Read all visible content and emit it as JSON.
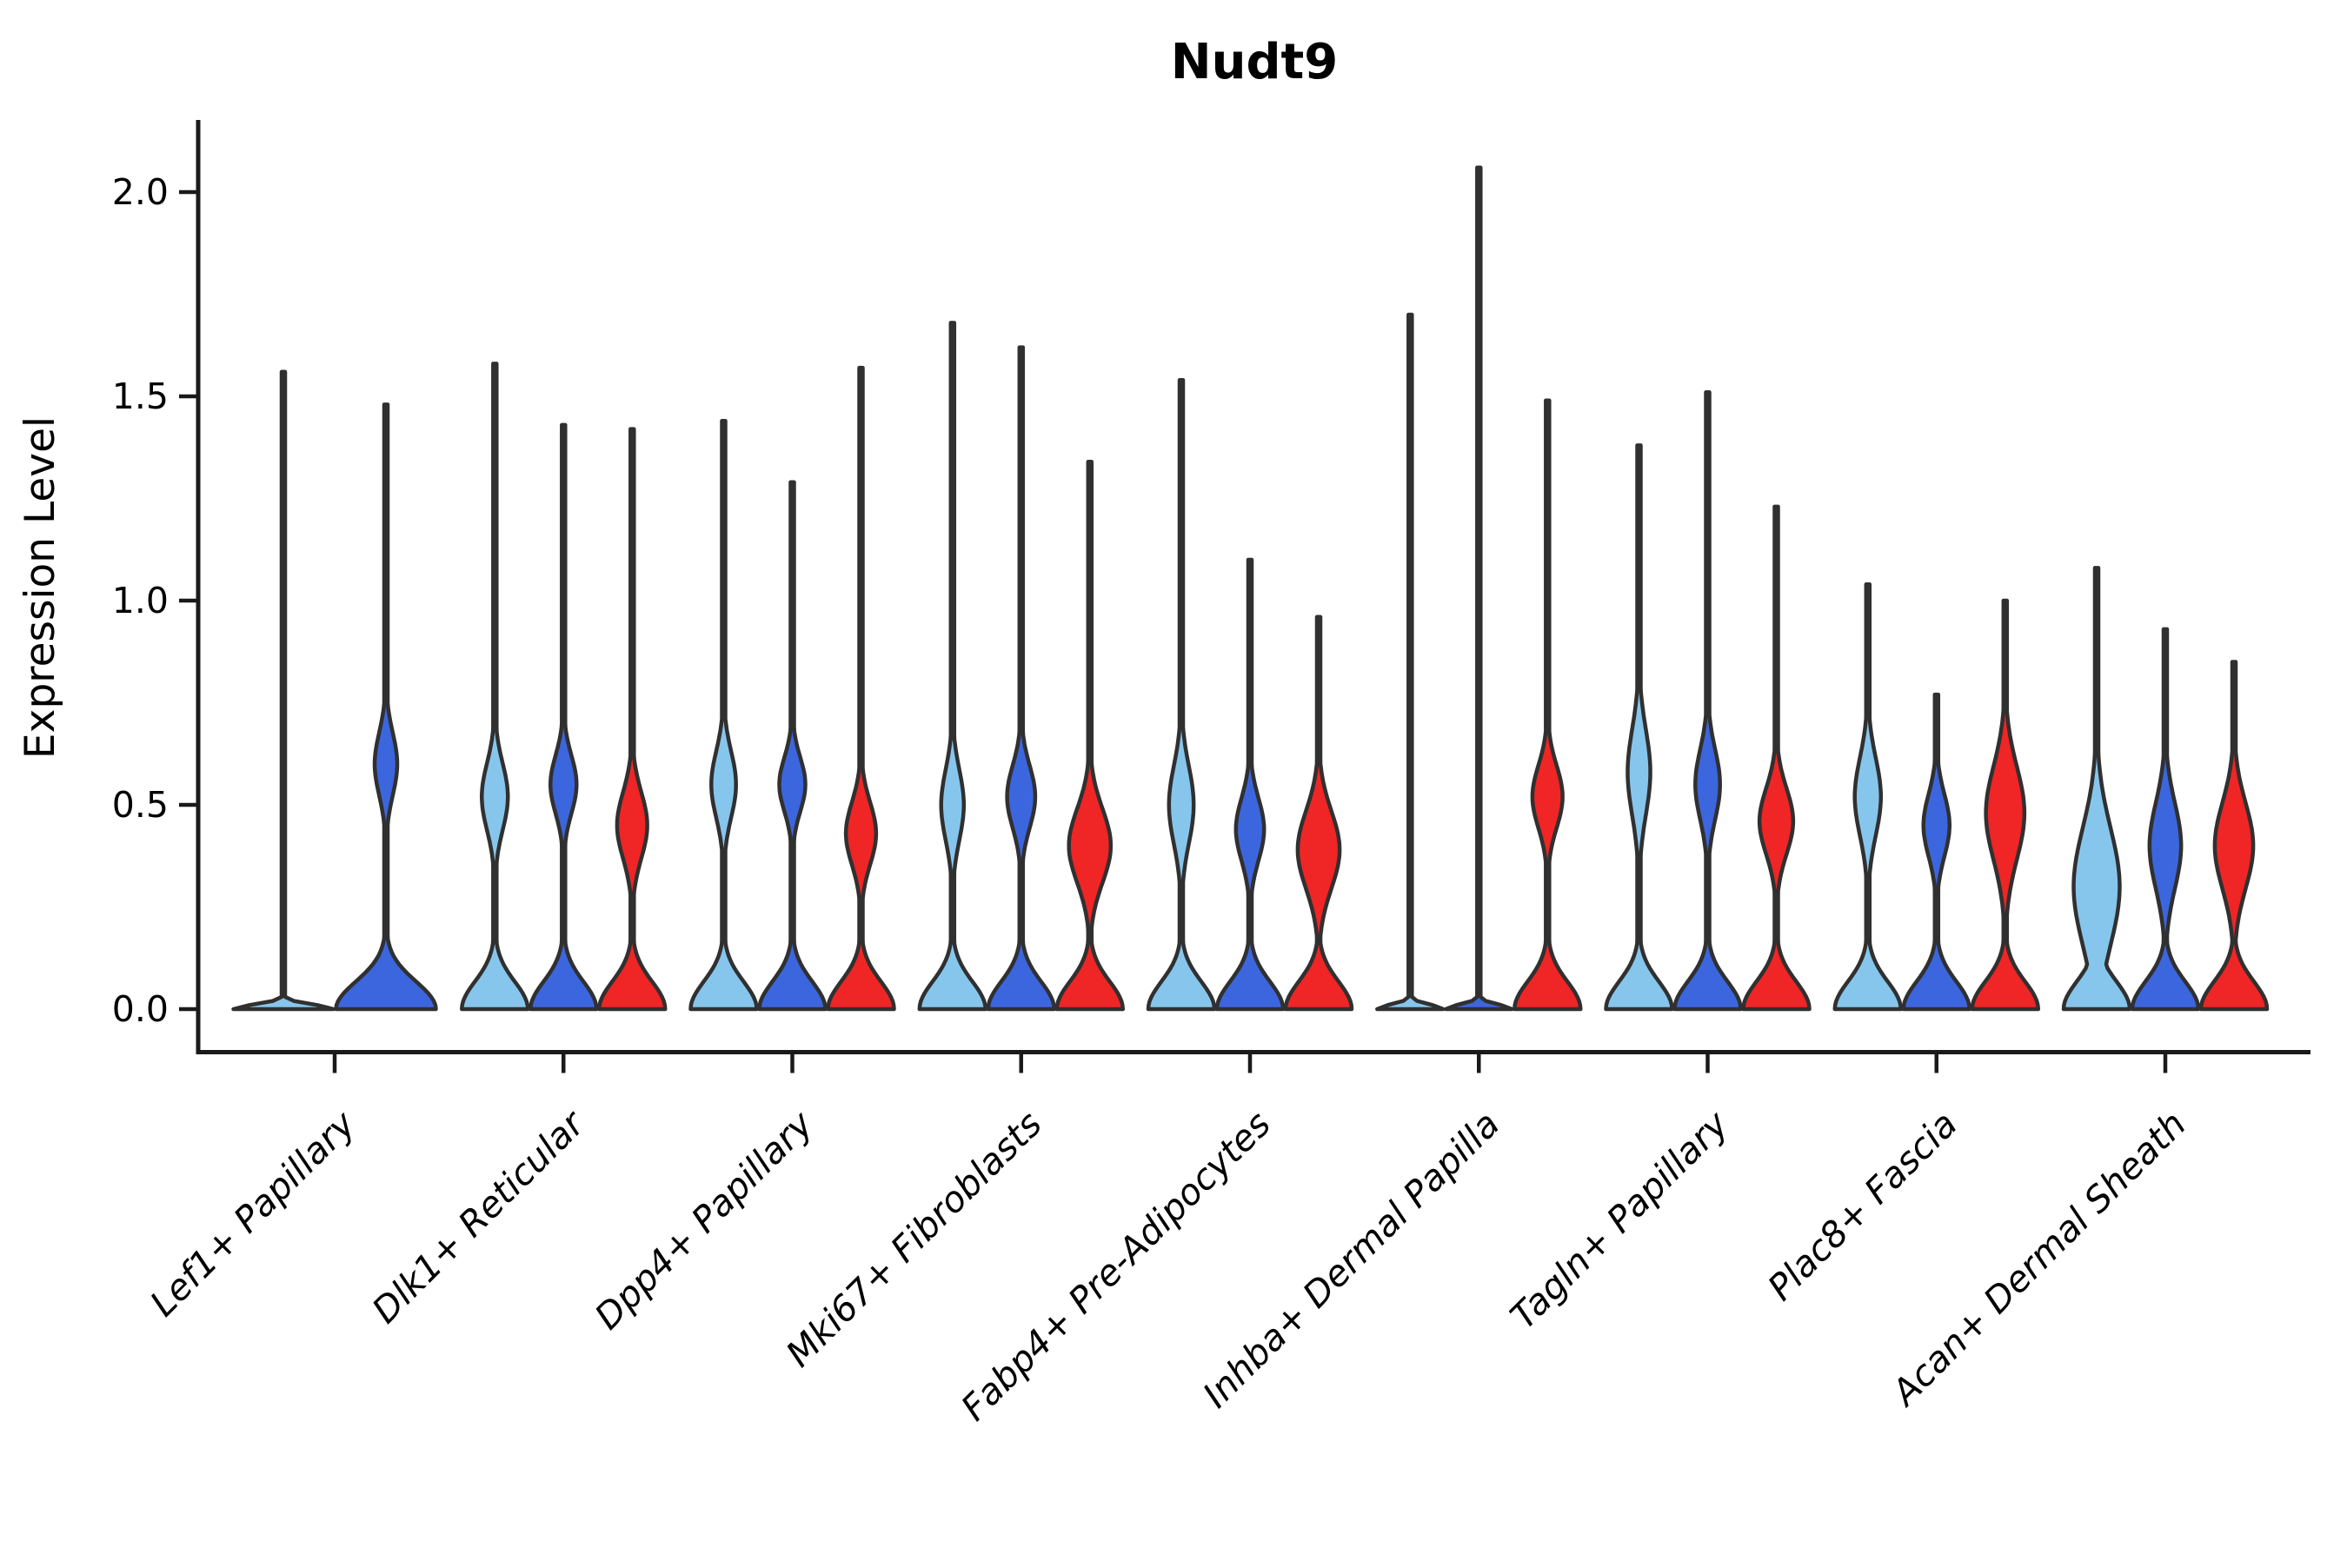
{
  "chart_data": {
    "type": "violin",
    "title": "Nudt9",
    "ylabel": "Expression Level",
    "xlabel": "",
    "grid": false,
    "legend_position": "none",
    "ylim": [
      0,
      2.1
    ],
    "ytick_labels": [
      "0.0",
      "0.5",
      "1.0",
      "1.5",
      "2.0"
    ],
    "ytick_values": [
      0.0,
      0.5,
      1.0,
      1.5,
      2.0
    ],
    "split_levels": [
      "light_blue",
      "blue",
      "red"
    ],
    "colors": {
      "light_blue": "#87C6EC",
      "blue": "#3C66DD",
      "red": "#F02525",
      "outline": "#303030",
      "axis": "#1A1A1A",
      "text": "#000000"
    },
    "categories": [
      "Lef1+ Papillary",
      "Dlk1+ Reticular",
      "Dpp4+ Papillary",
      "Mki67+ Fibroblasts",
      "Fabp4+ Pre-Adipocytes",
      "Inhba+ Dermal Papilla",
      "Tagln+ Papillary",
      "Plac8+ Fascia",
      "Acan+ Dermal Sheath"
    ],
    "groups": [
      {
        "category": "Lef1+ Papillary",
        "violins": [
          {
            "split": "light_blue",
            "max_expression": 1.56,
            "profile": "spike"
          },
          {
            "split": "blue",
            "max_expression": 1.48,
            "profile": "violin",
            "bulge_center": 0.6,
            "bulge_spread": 0.16,
            "bulge_width": 0.22
          }
        ]
      },
      {
        "category": "Dlk1+ Reticular",
        "violins": [
          {
            "split": "light_blue",
            "max_expression": 1.58,
            "profile": "violin",
            "bulge_center": 0.52,
            "bulge_spread": 0.17,
            "bulge_width": 0.38
          },
          {
            "split": "blue",
            "max_expression": 1.43,
            "profile": "violin",
            "bulge_center": 0.55,
            "bulge_spread": 0.15,
            "bulge_width": 0.38
          },
          {
            "split": "red",
            "max_expression": 1.42,
            "profile": "violin",
            "bulge_center": 0.45,
            "bulge_spread": 0.17,
            "bulge_width": 0.44
          }
        ]
      },
      {
        "category": "Dpp4+ Papillary",
        "violins": [
          {
            "split": "light_blue",
            "max_expression": 1.44,
            "profile": "violin",
            "bulge_center": 0.55,
            "bulge_spread": 0.17,
            "bulge_width": 0.36
          },
          {
            "split": "blue",
            "max_expression": 1.29,
            "profile": "violin",
            "bulge_center": 0.55,
            "bulge_spread": 0.14,
            "bulge_width": 0.38
          },
          {
            "split": "red",
            "max_expression": 1.57,
            "profile": "violin",
            "bulge_center": 0.43,
            "bulge_spread": 0.16,
            "bulge_width": 0.44
          }
        ]
      },
      {
        "category": "Mki67+ Fibroblasts",
        "violins": [
          {
            "split": "light_blue",
            "max_expression": 1.68,
            "profile": "violin",
            "bulge_center": 0.5,
            "bulge_spread": 0.18,
            "bulge_width": 0.33
          },
          {
            "split": "blue",
            "max_expression": 1.62,
            "profile": "violin",
            "bulge_center": 0.52,
            "bulge_spread": 0.16,
            "bulge_width": 0.41
          },
          {
            "split": "red",
            "max_expression": 1.34,
            "profile": "violin",
            "bulge_center": 0.4,
            "bulge_spread": 0.19,
            "bulge_width": 0.61
          }
        ]
      },
      {
        "category": "Fabp4+ Pre-Adipocytes",
        "violins": [
          {
            "split": "light_blue",
            "max_expression": 1.54,
            "profile": "violin",
            "bulge_center": 0.5,
            "bulge_spread": 0.2,
            "bulge_width": 0.36
          },
          {
            "split": "blue",
            "max_expression": 1.1,
            "profile": "violin",
            "bulge_center": 0.44,
            "bulge_spread": 0.16,
            "bulge_width": 0.41
          },
          {
            "split": "red",
            "max_expression": 0.96,
            "profile": "violin",
            "bulge_center": 0.39,
            "bulge_spread": 0.2,
            "bulge_width": 0.61
          }
        ]
      },
      {
        "category": "Inhba+ Dermal Papilla",
        "violins": [
          {
            "split": "light_blue",
            "max_expression": 1.7,
            "profile": "spike"
          },
          {
            "split": "blue",
            "max_expression": 2.06,
            "profile": "spike"
          },
          {
            "split": "red",
            "max_expression": 1.49,
            "profile": "violin",
            "bulge_center": 0.52,
            "bulge_spread": 0.16,
            "bulge_width": 0.44
          }
        ]
      },
      {
        "category": "Tagln+ Papillary",
        "violins": [
          {
            "split": "light_blue",
            "max_expression": 1.38,
            "profile": "violin",
            "bulge_center": 0.58,
            "bulge_spread": 0.22,
            "bulge_width": 0.33
          },
          {
            "split": "blue",
            "max_expression": 1.51,
            "profile": "violin",
            "bulge_center": 0.55,
            "bulge_spread": 0.18,
            "bulge_width": 0.36
          },
          {
            "split": "red",
            "max_expression": 1.23,
            "profile": "violin",
            "bulge_center": 0.46,
            "bulge_spread": 0.17,
            "bulge_width": 0.49
          }
        ]
      },
      {
        "category": "Plac8+ Fascia",
        "violins": [
          {
            "split": "light_blue",
            "max_expression": 1.04,
            "profile": "violin",
            "bulge_center": 0.52,
            "bulge_spread": 0.2,
            "bulge_width": 0.38
          },
          {
            "split": "blue",
            "max_expression": 0.77,
            "profile": "violin",
            "bulge_center": 0.45,
            "bulge_spread": 0.16,
            "bulge_width": 0.38
          },
          {
            "split": "red",
            "max_expression": 1.0,
            "profile": "violin",
            "bulge_center": 0.48,
            "bulge_spread": 0.24,
            "bulge_width": 0.56
          }
        ]
      },
      {
        "category": "Acan+ Dermal Sheath",
        "violins": [
          {
            "split": "light_blue",
            "max_expression": 1.08,
            "profile": "violin",
            "bulge_center": 0.3,
            "bulge_spread": 0.3,
            "bulge_width": 0.67
          },
          {
            "split": "blue",
            "max_expression": 0.93,
            "profile": "violin",
            "bulge_center": 0.4,
            "bulge_spread": 0.22,
            "bulge_width": 0.46
          },
          {
            "split": "red",
            "max_expression": 0.85,
            "profile": "violin",
            "bulge_center": 0.4,
            "bulge_spread": 0.22,
            "bulge_width": 0.56
          }
        ]
      }
    ]
  }
}
